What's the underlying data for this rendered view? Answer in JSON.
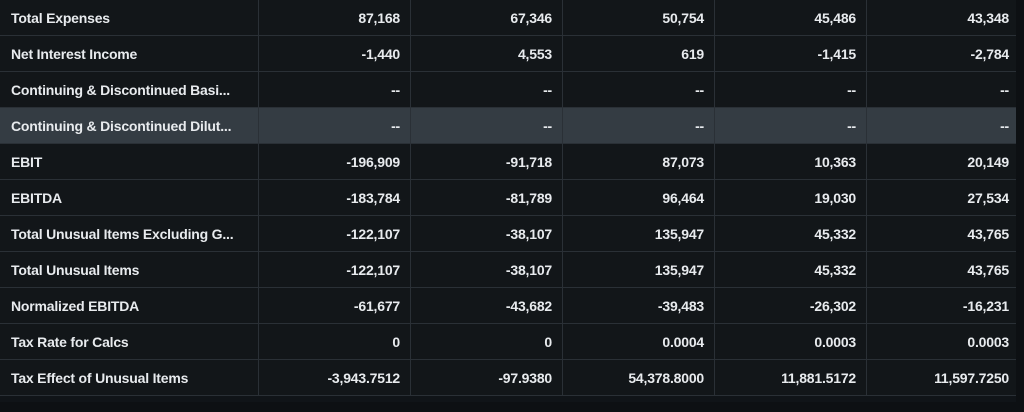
{
  "rows": [
    {
      "label": "Total Expenses",
      "values": [
        "87,168",
        "67,346",
        "50,754",
        "45,486",
        "43,348"
      ]
    },
    {
      "label": "Net Interest Income",
      "values": [
        "-1,440",
        "4,553",
        "619",
        "-1,415",
        "-2,784"
      ]
    },
    {
      "label": "Continuing & Discontinued Basi...",
      "values": [
        "--",
        "--",
        "--",
        "--",
        "--"
      ]
    },
    {
      "label": "Continuing & Discontinued Dilut...",
      "values": [
        "--",
        "--",
        "--",
        "--",
        "--"
      ],
      "highlighted": true
    },
    {
      "label": "EBIT",
      "values": [
        "-196,909",
        "-91,718",
        "87,073",
        "10,363",
        "20,149"
      ]
    },
    {
      "label": "EBITDA",
      "values": [
        "-183,784",
        "-81,789",
        "96,464",
        "19,030",
        "27,534"
      ]
    },
    {
      "label": "Total Unusual Items Excluding G...",
      "values": [
        "-122,107",
        "-38,107",
        "135,947",
        "45,332",
        "43,765"
      ]
    },
    {
      "label": "Total Unusual Items",
      "values": [
        "-122,107",
        "-38,107",
        "135,947",
        "45,332",
        "43,765"
      ]
    },
    {
      "label": "Normalized EBITDA",
      "values": [
        "-61,677",
        "-43,682",
        "-39,483",
        "-26,302",
        "-16,231"
      ]
    },
    {
      "label": "Tax Rate for Calcs",
      "values": [
        "0",
        "0",
        "0.0004",
        "0.0003",
        "0.0003"
      ]
    },
    {
      "label": "Tax Effect of Unusual Items",
      "values": [
        "-3,943.7512",
        "-97.9380",
        "54,378.8000",
        "11,881.5172",
        "11,597.7250"
      ]
    }
  ]
}
